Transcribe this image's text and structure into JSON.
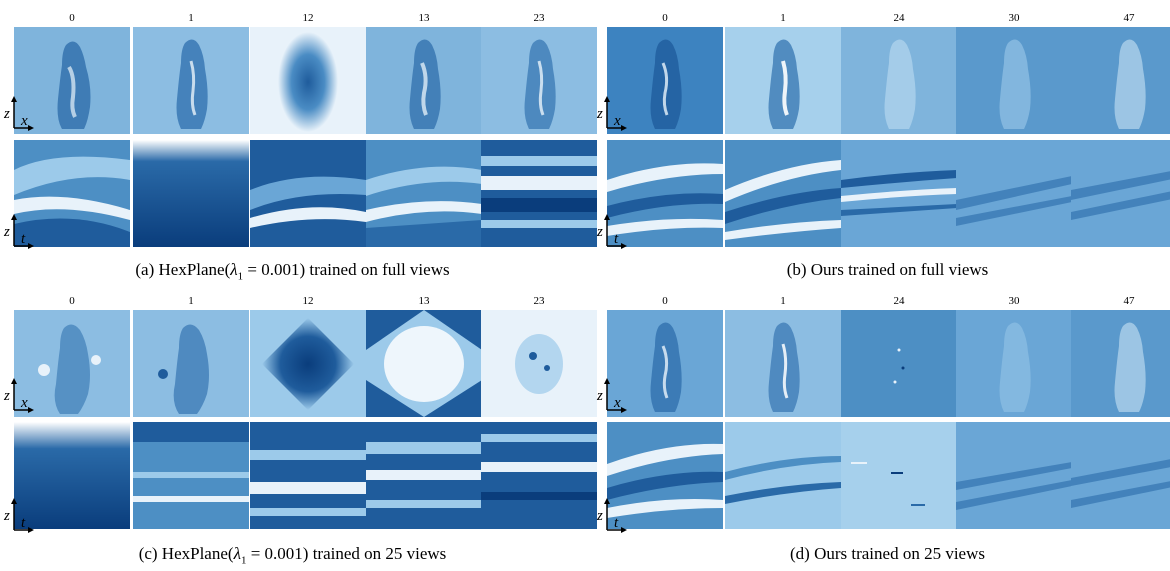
{
  "colors": {
    "deep_blue": "#0a3d7c",
    "mid_blue": "#4d8fc4",
    "light_blue": "#9ccaea",
    "pale": "#e8f2fa"
  },
  "panels": [
    {
      "id": "a",
      "column_labels": [
        "0",
        "1",
        "12",
        "13",
        "23"
      ],
      "row_axes": [
        {
          "v": "z",
          "h": "x"
        },
        {
          "v": "z",
          "h": "t"
        }
      ],
      "caption": {
        "prefix": "(a) HexPlane(",
        "lambda_text": "λ",
        "sub": "1",
        "eq": " = 0.001",
        "suffix": ") trained on full views"
      }
    },
    {
      "id": "b",
      "column_labels": [
        "0",
        "1",
        "24",
        "30",
        "47"
      ],
      "row_axes": [
        {
          "v": "z",
          "h": "x"
        },
        {
          "v": "z",
          "h": "t"
        }
      ],
      "caption": {
        "text": "(b) Ours trained on full views"
      }
    },
    {
      "id": "c",
      "column_labels": [
        "0",
        "1",
        "12",
        "13",
        "23"
      ],
      "row_axes": [
        {
          "v": "z",
          "h": "x"
        },
        {
          "v": "z",
          "h": "t"
        }
      ],
      "caption": {
        "prefix": "(c) HexPlane(",
        "lambda_text": "λ",
        "sub": "1",
        "eq": " = 0.001",
        "suffix": ") trained on 25 views"
      }
    },
    {
      "id": "d",
      "column_labels": [
        "0",
        "1",
        "24",
        "30",
        "47"
      ],
      "row_axes": [
        {
          "v": "z",
          "h": "x"
        },
        {
          "v": "z",
          "h": "t"
        }
      ],
      "caption": {
        "text": "(d) Ours trained on 25 views"
      }
    }
  ]
}
